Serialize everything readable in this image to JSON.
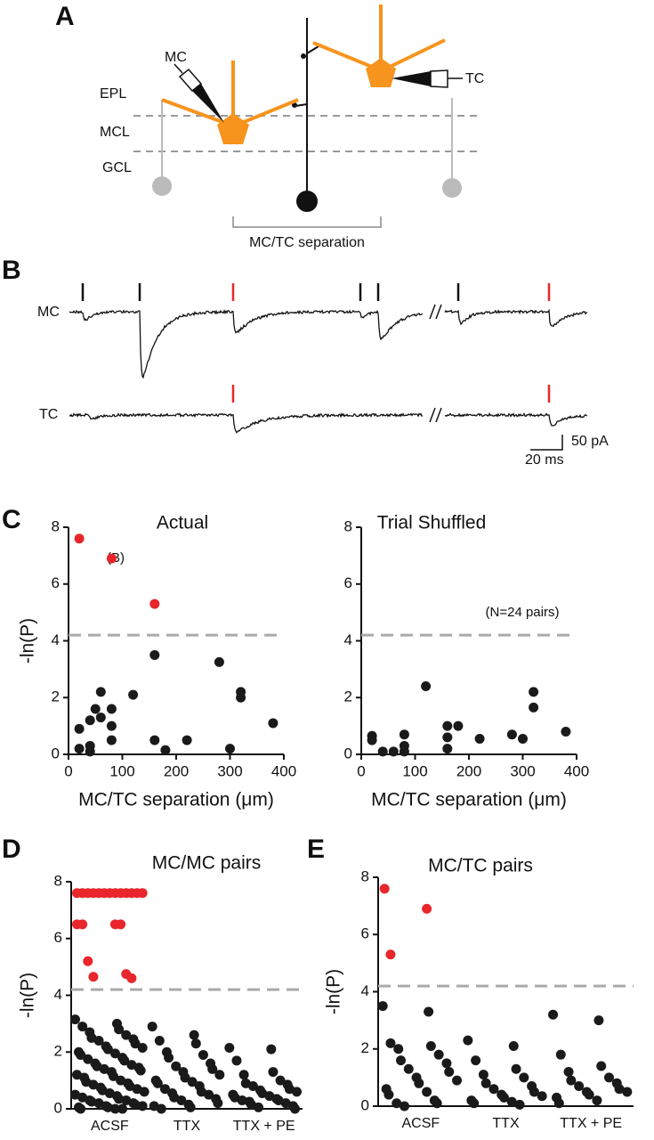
{
  "panel_labels": [
    "A",
    "B",
    "C",
    "D",
    "E"
  ],
  "diagram": {
    "mc": "MC",
    "tc": "TC",
    "epl": "EPL",
    "mcl": "MCL",
    "gcl": "GCL",
    "separation": "MC/TC separation"
  },
  "traces": {
    "mc": "MC",
    "tc": "TC",
    "scale_current": "50 pA",
    "scale_time": "20 ms"
  },
  "chart_data": [
    {
      "type": "scatter",
      "title": "Actual",
      "xlabel": "MC/TC separation (μm)",
      "ylabel": "-ln(P)",
      "annotation": "(B)",
      "xlim": [
        0,
        400
      ],
      "ylim": [
        0,
        8
      ],
      "xticks": [
        0,
        100,
        200,
        300,
        400
      ],
      "yticks": [
        0,
        2,
        4,
        6,
        8
      ],
      "threshold": 4.2,
      "series": [
        {
          "color": "#e8262b",
          "x": [
            20,
            80,
            160
          ],
          "values": [
            7.6,
            6.9,
            5.3
          ]
        },
        {
          "color": "#1a1a1a",
          "x": [
            20,
            20,
            40,
            40,
            40,
            50,
            60,
            60,
            80,
            80,
            80,
            120,
            160,
            160,
            180,
            220,
            280,
            300,
            320,
            320,
            380
          ],
          "values": [
            0.9,
            0.2,
            0.1,
            1.2,
            0.3,
            1.6,
            2.2,
            1.3,
            1.6,
            0.5,
            1.0,
            2.1,
            3.5,
            0.5,
            0.15,
            0.5,
            3.25,
            0.2,
            2.2,
            2.0,
            1.1
          ]
        }
      ]
    },
    {
      "type": "scatter",
      "title": "Trial Shuffled",
      "xlabel": "MC/TC separation (μm)",
      "annotation": "(N=24 pairs)",
      "xlim": [
        0,
        400
      ],
      "ylim": [
        0,
        8
      ],
      "xticks": [
        0,
        100,
        200,
        300,
        400
      ],
      "yticks": [
        0,
        2,
        4,
        6,
        8
      ],
      "threshold": 4.2,
      "series": [
        {
          "color": "#1a1a1a",
          "x": [
            20,
            20,
            40,
            60,
            80,
            80,
            80,
            120,
            160,
            160,
            160,
            180,
            220,
            280,
            300,
            320,
            320,
            380
          ],
          "values": [
            0.65,
            0.5,
            0.1,
            0.1,
            0.7,
            0.3,
            0.1,
            2.4,
            1.0,
            0.6,
            0.2,
            1.0,
            0.55,
            0.7,
            0.55,
            2.2,
            1.65,
            0.8
          ]
        }
      ]
    },
    {
      "type": "strip",
      "title": "MC/MC pairs",
      "ylabel": "-ln(P)",
      "categories": [
        "ACSF",
        "TTX",
        "TTX + PE"
      ],
      "ylim": [
        0,
        8
      ],
      "yticks": [
        0,
        2,
        4,
        6,
        8
      ],
      "threshold": 4.2,
      "series": [
        {
          "color": "#e8262b",
          "values": [
            [
              7.6,
              7.6,
              7.6,
              7.6,
              7.6,
              7.6,
              7.6,
              7.6,
              7.6,
              7.6,
              7.6,
              7.6,
              7.6,
              6.5,
              6.5,
              6.5,
              6.5,
              5.2,
              4.75,
              4.65,
              4.6
            ],
            [],
            []
          ]
        },
        {
          "color": "#1a1a1a",
          "values": [
            [
              3.15,
              3.0,
              2.9,
              2.8,
              2.7,
              2.6,
              2.5,
              2.45,
              2.4,
              2.3,
              2.2,
              2.15,
              2.1,
              2.0,
              1.95,
              1.9,
              1.8,
              1.75,
              1.7,
              1.6,
              1.55,
              1.5,
              1.45,
              1.4,
              1.35,
              1.3,
              1.2,
              1.15,
              1.1,
              1.0,
              0.95,
              0.9,
              0.85,
              0.8,
              0.75,
              0.7,
              0.65,
              0.6,
              0.55,
              0.5,
              0.45,
              0.4,
              0.35,
              0.3,
              0.3,
              0.25,
              0.2,
              0.2,
              0.15,
              0.1,
              0.1,
              0.05,
              0.05,
              0,
              0,
              0
            ],
            [
              2.9,
              2.6,
              2.4,
              2.3,
              2.0,
              1.9,
              1.8,
              1.6,
              1.5,
              1.4,
              1.3,
              1.2,
              1.1,
              1.0,
              0.95,
              0.9,
              0.8,
              0.7,
              0.6,
              0.55,
              0.5,
              0.4,
              0.35,
              0.3,
              0.2,
              0.15,
              0.1,
              0.05,
              0
            ],
            [
              2.15,
              2.1,
              1.7,
              1.3,
              1.2,
              1.0,
              0.9,
              0.85,
              0.8,
              0.7,
              0.65,
              0.6,
              0.55,
              0.5,
              0.45,
              0.4,
              0.35,
              0.3,
              0.3,
              0.25,
              0.2,
              0.15,
              0.1,
              0.05,
              0
            ]
          ]
        }
      ]
    },
    {
      "type": "strip",
      "title": "MC/TC pairs",
      "ylabel": "-ln(P)",
      "categories": [
        "ACSF",
        "TTX",
        "TTX + PE"
      ],
      "ylim": [
        0,
        8
      ],
      "yticks": [
        0,
        2,
        4,
        6,
        8
      ],
      "threshold": 4.2,
      "series": [
        {
          "color": "#e8262b",
          "values": [
            [
              7.6,
              6.9,
              5.3
            ],
            [],
            []
          ]
        },
        {
          "color": "#1a1a1a",
          "values": [
            [
              3.5,
              3.3,
              2.2,
              2.1,
              2.0,
              1.8,
              1.6,
              1.5,
              1.3,
              1.2,
              1.0,
              0.9,
              0.8,
              0.6,
              0.5,
              0.4,
              0.2,
              0.1,
              0.1,
              0
            ],
            [
              2.3,
              2.1,
              1.6,
              1.3,
              1.1,
              1.0,
              0.8,
              0.7,
              0.6,
              0.5,
              0.4,
              0.35,
              0.3,
              0.2,
              0.15,
              0.1,
              0.05
            ],
            [
              3.2,
              3.0,
              1.8,
              1.4,
              1.2,
              1.0,
              0.9,
              0.8,
              0.7,
              0.6,
              0.5,
              0.5,
              0.4,
              0.3,
              0.2,
              0.1
            ]
          ]
        }
      ]
    }
  ]
}
